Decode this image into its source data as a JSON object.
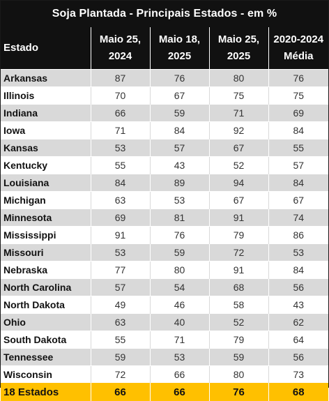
{
  "title": "Soja Plantada - Principais Estados - em %",
  "headers": {
    "state": "Estado",
    "col1_l1": "Maio 25,",
    "col1_l2": "2024",
    "col2_l1": "Maio 18,",
    "col2_l2": "2025",
    "col3_l1": "Maio 25,",
    "col3_l2": "2025",
    "col4_l1": "2020-2024",
    "col4_l2": "Média"
  },
  "rows": [
    [
      "Arkansas",
      "87",
      "76",
      "80",
      "76"
    ],
    [
      "Illinois",
      "70",
      "67",
      "75",
      "75"
    ],
    [
      "Indiana",
      "66",
      "59",
      "71",
      "69"
    ],
    [
      "Iowa",
      "71",
      "84",
      "92",
      "84"
    ],
    [
      "Kansas",
      "53",
      "57",
      "67",
      "55"
    ],
    [
      "Kentucky",
      "55",
      "43",
      "52",
      "57"
    ],
    [
      "Louisiana",
      "84",
      "89",
      "94",
      "84"
    ],
    [
      "Michigan",
      "63",
      "53",
      "67",
      "67"
    ],
    [
      "Minnesota",
      "69",
      "81",
      "91",
      "74"
    ],
    [
      "Mississippi",
      "91",
      "76",
      "79",
      "86"
    ],
    [
      "Missouri",
      "53",
      "59",
      "72",
      "53"
    ],
    [
      "Nebraska",
      "77",
      "80",
      "91",
      "84"
    ],
    [
      "North Carolina",
      "57",
      "54",
      "68",
      "56"
    ],
    [
      "North Dakota",
      "49",
      "46",
      "58",
      "43"
    ],
    [
      "Ohio",
      "63",
      "40",
      "52",
      "62"
    ],
    [
      "South Dakota",
      "55",
      "71",
      "79",
      "64"
    ],
    [
      "Tennessee",
      "59",
      "53",
      "59",
      "56"
    ],
    [
      "Wisconsin",
      "72",
      "66",
      "80",
      "73"
    ]
  ],
  "total": [
    "18 Estados",
    "66",
    "66",
    "76",
    "68"
  ],
  "colors": {
    "header_bg": "#111111",
    "stripe": "#d9d9d9",
    "total_bg": "#ffc000"
  }
}
